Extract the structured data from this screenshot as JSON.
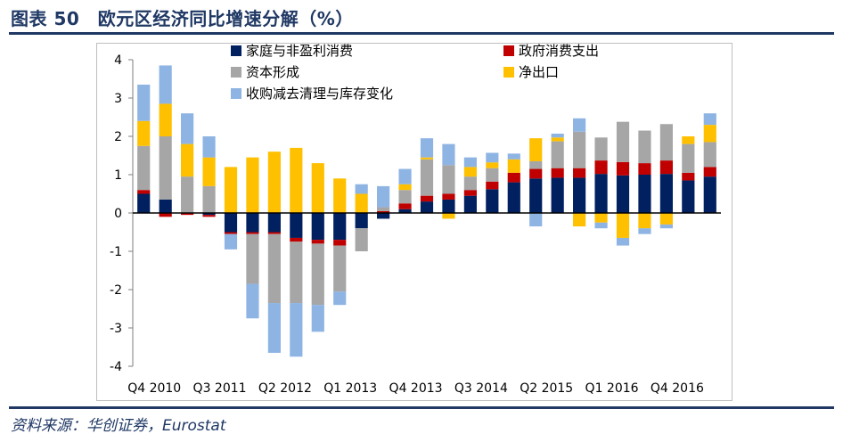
{
  "header": {
    "title": "图表 50　欧元区经济同比增速分解（%）"
  },
  "footer": {
    "source": "资料来源：华创证券，Eurostat"
  },
  "chart_data": {
    "type": "stacked-bar",
    "title": "欧元区经济同比增速分解（%）",
    "ylim": [
      -4,
      4
    ],
    "yticks": [
      "4",
      "3",
      "2",
      "1",
      "0",
      "-1",
      "-2",
      "-3",
      "-4"
    ],
    "xtick_labels": [
      "Q4 2010",
      "Q3 2011",
      "Q2 2012",
      "Q1 2013",
      "Q4 2013",
      "Q3 2014",
      "Q2 2015",
      "Q1 2016",
      "Q4 2016"
    ],
    "xtick_every": 3,
    "categories": [
      "Q4 2010",
      "Q1 2011",
      "Q2 2011",
      "Q3 2011",
      "Q4 2011",
      "Q1 2012",
      "Q2 2012",
      "Q3 2012",
      "Q4 2012",
      "Q1 2013",
      "Q2 2013",
      "Q3 2013",
      "Q4 2013",
      "Q1 2014",
      "Q2 2014",
      "Q3 2014",
      "Q4 2014",
      "Q1 2015",
      "Q2 2015",
      "Q3 2015",
      "Q4 2015",
      "Q1 2016",
      "Q2 2016",
      "Q3 2016",
      "Q4 2016",
      "Q1 2017",
      "Q2 2017"
    ],
    "series": [
      {
        "name": "家庭与非盈利消费",
        "color": "#002060",
        "values": [
          0.5,
          0.35,
          0.0,
          -0.05,
          -0.5,
          -0.5,
          -0.5,
          -0.65,
          -0.7,
          -0.7,
          -0.4,
          -0.15,
          0.1,
          0.3,
          0.35,
          0.45,
          0.62,
          0.8,
          0.9,
          0.92,
          0.92,
          1.02,
          0.98,
          1.0,
          1.02,
          0.85,
          0.95
        ]
      },
      {
        "name": "政府消费支出",
        "color": "#c00000",
        "values": [
          0.1,
          -0.1,
          -0.05,
          -0.05,
          -0.05,
          -0.05,
          -0.05,
          -0.1,
          -0.1,
          -0.15,
          0.0,
          0.05,
          0.15,
          0.15,
          0.15,
          0.15,
          0.2,
          0.25,
          0.25,
          0.25,
          0.25,
          0.35,
          0.35,
          0.3,
          0.35,
          0.2,
          0.25
        ]
      },
      {
        "name": "资本形成",
        "color": "#a6a6a6",
        "values": [
          1.15,
          1.65,
          0.95,
          0.7,
          0.0,
          -1.3,
          -1.8,
          -1.6,
          -1.6,
          -1.2,
          -0.6,
          0.1,
          0.35,
          0.95,
          0.75,
          0.35,
          0.35,
          0.0,
          0.2,
          0.7,
          0.95,
          0.6,
          1.05,
          0.85,
          0.95,
          0.75,
          0.65
        ]
      },
      {
        "name": "净出口",
        "color": "#ffc000",
        "values": [
          0.65,
          0.85,
          0.85,
          0.75,
          1.2,
          1.45,
          1.6,
          1.7,
          1.3,
          0.9,
          0.5,
          0.0,
          0.15,
          0.05,
          -0.15,
          0.25,
          0.15,
          0.35,
          0.6,
          0.1,
          -0.35,
          -0.25,
          -0.65,
          -0.4,
          -0.3,
          0.2,
          0.45
        ]
      },
      {
        "name": "收购减去清理与库存变化",
        "color": "#8eb4e3",
        "values": [
          0.95,
          1.0,
          0.8,
          0.55,
          -0.4,
          -0.9,
          -1.3,
          -1.4,
          -0.7,
          -0.35,
          0.25,
          0.55,
          0.4,
          0.5,
          0.55,
          0.25,
          0.25,
          0.15,
          -0.35,
          0.1,
          0.35,
          -0.15,
          -0.2,
          -0.15,
          -0.1,
          0.0,
          0.3
        ]
      }
    ]
  }
}
